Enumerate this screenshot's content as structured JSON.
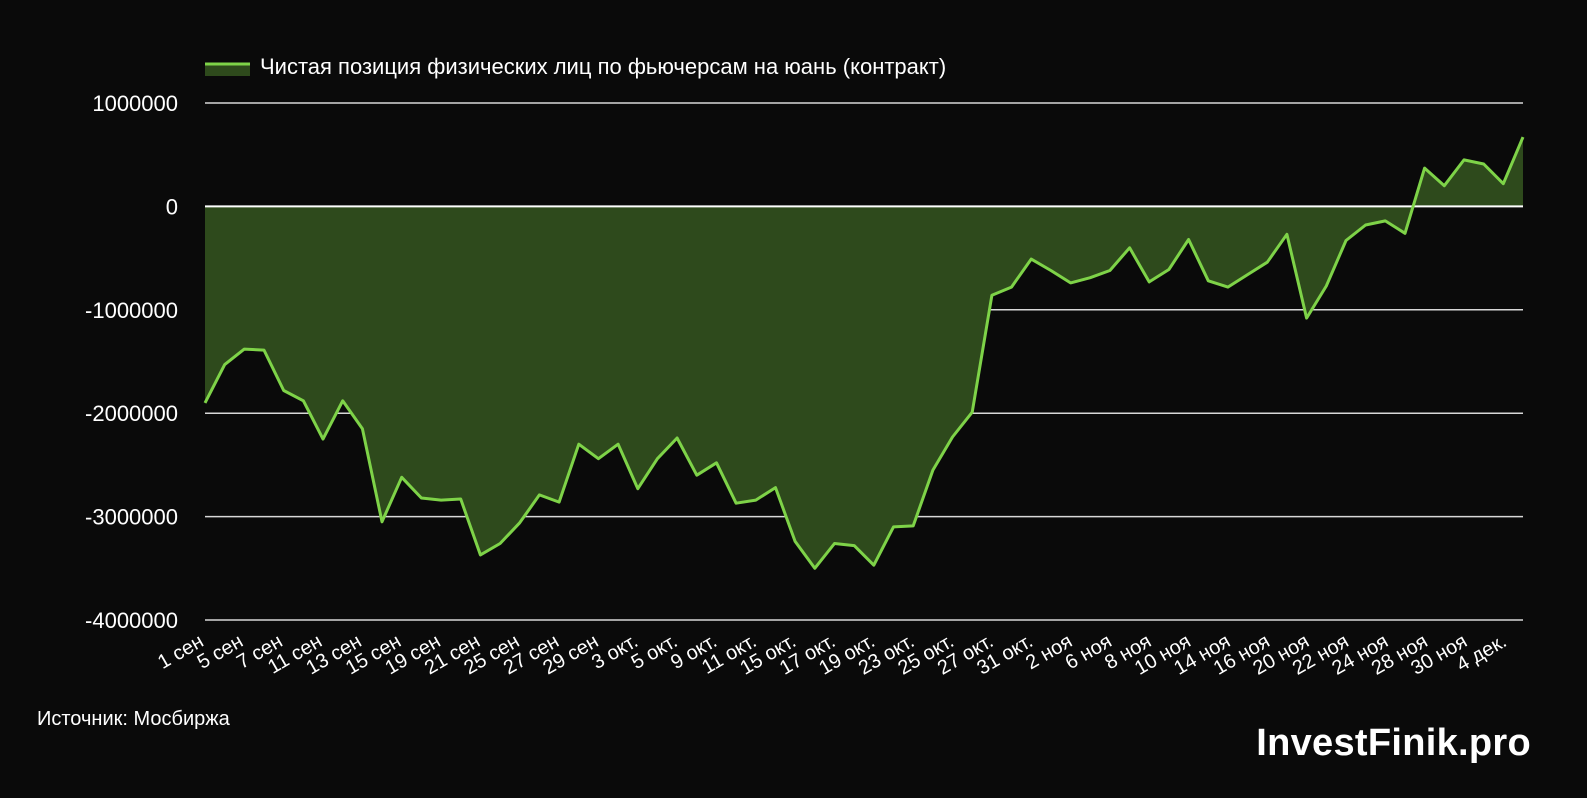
{
  "colors": {
    "background": "#0a0a0a",
    "line": "#7ed348",
    "area": "#2e4a1c",
    "grid": "#d8d8d8",
    "zero_line": "#ffffff",
    "text": "#ffffff"
  },
  "source": "Источник: Мосбиржа",
  "brand": "InvestFinik.pro",
  "chart_data": {
    "type": "area",
    "title": "",
    "legend_position": "top-left",
    "grid": true,
    "ylim": [
      -4000000,
      1000000
    ],
    "yticks": [
      "1000000",
      "0",
      "-1000000",
      "-2000000",
      "-3000000",
      "-4000000"
    ],
    "xticks": [
      "1 сен",
      "5 сен",
      "7 сен",
      "11 сен",
      "13 сен",
      "15 сен",
      "19 сен",
      "21 сен",
      "25 сен",
      "27 сен",
      "29 сен",
      "3 окт.",
      "5 окт.",
      "9 окт.",
      "11 окт.",
      "15 окт.",
      "17 окт.",
      "19 окт.",
      "23 окт.",
      "25 окт.",
      "27 окт.",
      "31 окт.",
      "2 ноя",
      "6 ноя",
      "8 ноя",
      "10 ноя",
      "14 ноя",
      "16 ноя",
      "20 ноя",
      "22 ноя",
      "24 ноя",
      "28 ноя",
      "30 ноя",
      "4 дек."
    ],
    "series": [
      {
        "name": "Чистая позиция физических лиц по фьючерсам на юань (контракт)",
        "values": [
          -1900000,
          -1530000,
          -1380000,
          -1390000,
          -1780000,
          -1880000,
          -2250000,
          -1880000,
          -2150000,
          -3050000,
          -2620000,
          -2820000,
          -2840000,
          -2830000,
          -3370000,
          -3260000,
          -3060000,
          -2790000,
          -2860000,
          -2300000,
          -2440000,
          -2300000,
          -2730000,
          -2440000,
          -2240000,
          -2600000,
          -2480000,
          -2870000,
          -2840000,
          -2720000,
          -3240000,
          -3500000,
          -3260000,
          -3280000,
          -3470000,
          -3100000,
          -3090000,
          -2550000,
          -2230000,
          -1990000,
          -860000,
          -780000,
          -510000,
          -620000,
          -740000,
          -690000,
          -620000,
          -400000,
          -730000,
          -610000,
          -320000,
          -720000,
          -780000,
          -660000,
          -540000,
          -270000,
          -1080000,
          -770000,
          -330000,
          -180000,
          -140000,
          -260000,
          370000,
          200000,
          450000,
          410000,
          220000,
          670000
        ]
      }
    ]
  }
}
